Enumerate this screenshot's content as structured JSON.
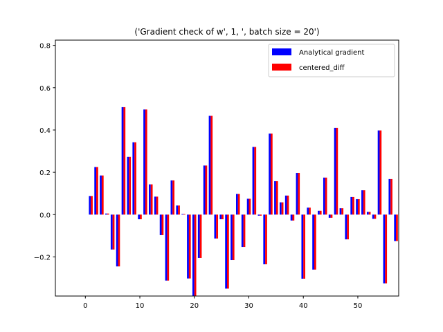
{
  "chart_data": {
    "type": "bar",
    "title": "('Gradient check of w', 1, ', batch size = 20')",
    "xlabel": "",
    "ylabel": "",
    "xlim": [
      -5.5,
      57.5
    ],
    "ylim": [
      -0.385,
      0.825
    ],
    "xticks": [
      0,
      10,
      20,
      30,
      40,
      50
    ],
    "yticks": [
      -0.2,
      0.0,
      0.2,
      0.4,
      0.6,
      0.8
    ],
    "ytick_labels": [
      "−0.2",
      "0.0",
      "0.2",
      "0.4",
      "0.6",
      "0.8"
    ],
    "grid": false,
    "legend_position": "top-right",
    "x": [
      1,
      2,
      3,
      4,
      5,
      6,
      7,
      8,
      9,
      10,
      11,
      12,
      13,
      14,
      15,
      16,
      17,
      18,
      19,
      20,
      21,
      22,
      23,
      24,
      25,
      26,
      27,
      28,
      29,
      30,
      31,
      32,
      33,
      34,
      35,
      36,
      37,
      38,
      39,
      40,
      41,
      42,
      43,
      44,
      45,
      46,
      47,
      48,
      49,
      50,
      51,
      52,
      53,
      54,
      55,
      56,
      57
    ],
    "series": [
      {
        "name": "Analytical gradient",
        "color": "#0000ff",
        "values": [
          0.088,
          0.225,
          0.185,
          0.005,
          -0.165,
          -0.245,
          0.508,
          0.273,
          0.342,
          -0.022,
          0.497,
          0.143,
          0.085,
          -0.097,
          -0.312,
          0.162,
          0.043,
          0.003,
          -0.302,
          -0.39,
          -0.205,
          0.232,
          0.467,
          -0.113,
          -0.022,
          -0.35,
          -0.215,
          0.098,
          -0.153,
          0.075,
          0.32,
          -0.005,
          -0.235,
          0.383,
          0.158,
          0.058,
          0.09,
          -0.028,
          0.197,
          -0.303,
          0.033,
          -0.26,
          0.018,
          0.175,
          -0.015,
          0.41,
          0.03,
          -0.117,
          0.083,
          0.073,
          0.115,
          0.013,
          -0.02,
          0.398,
          -0.325,
          0.168,
          -0.125
        ]
      },
      {
        "name": "centered_diff",
        "color": "#ff0000",
        "values": [
          0.088,
          0.225,
          0.185,
          0.005,
          -0.165,
          -0.245,
          0.508,
          0.273,
          0.342,
          -0.022,
          0.497,
          0.143,
          0.085,
          -0.097,
          -0.312,
          0.162,
          0.043,
          0.003,
          -0.302,
          -0.39,
          -0.205,
          0.232,
          0.467,
          -0.113,
          -0.022,
          -0.35,
          -0.215,
          0.098,
          -0.153,
          0.075,
          0.32,
          -0.005,
          -0.235,
          0.383,
          0.158,
          0.058,
          0.09,
          -0.028,
          0.197,
          -0.303,
          0.033,
          -0.26,
          0.018,
          0.175,
          -0.015,
          0.41,
          0.03,
          -0.117,
          0.083,
          0.073,
          0.115,
          0.013,
          -0.02,
          0.398,
          -0.325,
          0.168,
          -0.125
        ]
      }
    ]
  }
}
